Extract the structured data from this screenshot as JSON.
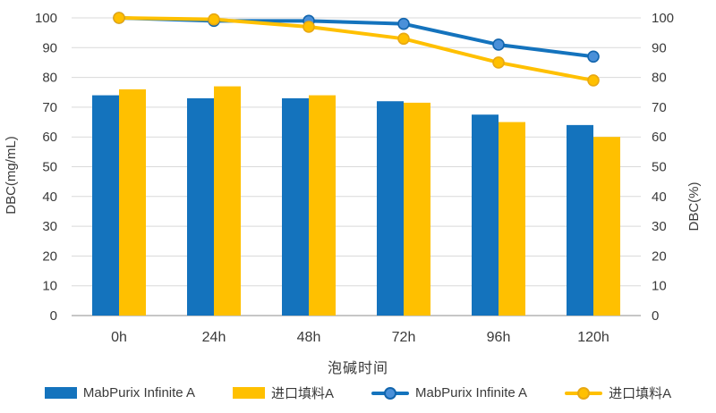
{
  "chart_data": {
    "type": "bar",
    "subtype": "combo-bar-line",
    "categories": [
      "0h",
      "24h",
      "48h",
      "72h",
      "96h",
      "120h"
    ],
    "series": [
      {
        "name": "MabPurix Infinite A",
        "render": "bar",
        "axis": "left",
        "color": "#1473bd",
        "values": [
          74,
          73,
          73,
          72,
          67.5,
          64
        ]
      },
      {
        "name": "进口填料A",
        "render": "bar",
        "axis": "left",
        "color": "#ffc000",
        "values": [
          76,
          77,
          74,
          71.5,
          65,
          60
        ]
      },
      {
        "name": "MabPurix Infinite A",
        "render": "line",
        "axis": "right",
        "color": "#1473bd",
        "marker_fill": "#4a90d9",
        "marker_stroke": "#1265ad",
        "values": [
          100,
          99,
          99,
          98,
          91,
          87
        ]
      },
      {
        "name": "进口填料A",
        "render": "line",
        "axis": "right",
        "color": "#ffc000",
        "marker_fill": "#ffc000",
        "marker_stroke": "#e8a812",
        "values": [
          100,
          99.5,
          97,
          93,
          85,
          79
        ]
      }
    ],
    "xlabel": "泡碱时间",
    "ylabel_left": "DBC(mg/mL)",
    "ylabel_right": "DBC(%)",
    "ylim": [
      0,
      100
    ],
    "yticks": [
      0,
      10,
      20,
      30,
      40,
      50,
      60,
      70,
      80,
      90,
      100
    ],
    "grid": true,
    "legend_position": "bottom"
  },
  "style": {
    "gridline_color": "#d9d9d9",
    "baseline_color": "#b3b3b3",
    "text_color": "#3a3a3a",
    "background": "#ffffff"
  }
}
